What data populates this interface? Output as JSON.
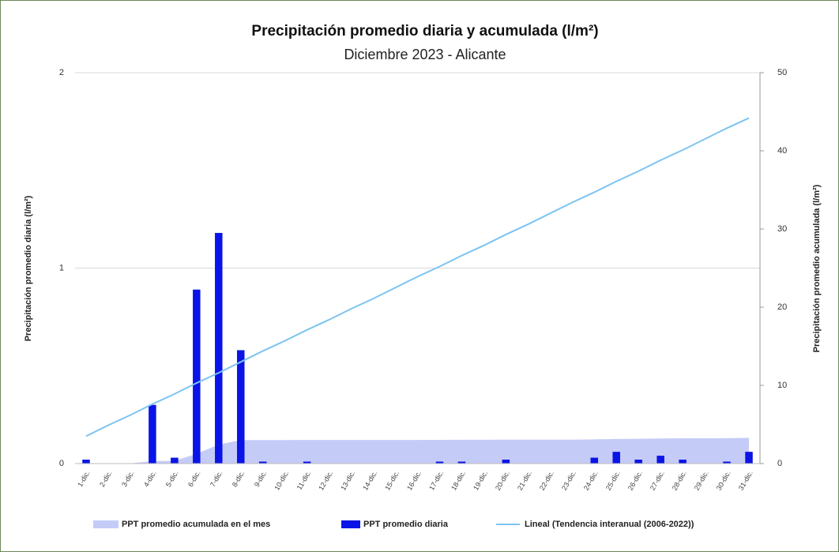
{
  "chart_data": {
    "type": "bar",
    "title": "Precipitación promedio diaria y acumulada (l/m²)",
    "subtitle": "Diciembre 2023 - Alicante",
    "y_label": "Precipitación promedio diaria (l/m²)",
    "y2_label": "Precipitación promedio acumulada (l/m²)",
    "categories": [
      "1-dic.",
      "2-dic.",
      "3-dic.",
      "4-dic.",
      "5-dic.",
      "6-dic.",
      "7-dic.",
      "8-dic.",
      "9-dic.",
      "10-dic.",
      "11-dic.",
      "12-dic.",
      "13-dic.",
      "14-dic.",
      "15-dic.",
      "16-dic.",
      "17-dic.",
      "18-dic.",
      "19-dic.",
      "20-dic.",
      "21-dic.",
      "22-dic.",
      "23-dic.",
      "24-dic.",
      "25-dic.",
      "26-dic.",
      "27-dic.",
      "28-dic.",
      "29-dic.",
      "30-dic.",
      "31-dic."
    ],
    "series": [
      {
        "name": "PPT promedio acumulada en el mes",
        "type": "area",
        "axis": "y2",
        "color": "#c5cbf7",
        "values": [
          0.02,
          0.02,
          0.02,
          0.32,
          0.35,
          1.24,
          2.42,
          3.0,
          3.01,
          3.01,
          3.02,
          3.02,
          3.02,
          3.02,
          3.02,
          3.02,
          3.03,
          3.04,
          3.04,
          3.06,
          3.06,
          3.06,
          3.06,
          3.09,
          3.15,
          3.17,
          3.21,
          3.23,
          3.23,
          3.24,
          3.3
        ]
      },
      {
        "name": "PPT promedio diaria",
        "type": "bar",
        "color": "#0a14e6",
        "values": [
          0.02,
          0,
          0,
          0.3,
          0.03,
          0.89,
          1.18,
          0.58,
          0.01,
          0,
          0.01,
          0,
          0,
          0,
          0,
          0,
          0.01,
          0.01,
          0,
          0.02,
          0,
          0,
          0,
          0.03,
          0.06,
          0.02,
          0.04,
          0.02,
          0,
          0.01,
          0.06
        ]
      },
      {
        "name": "Lineal (Tendencia interanual (2006-2022))",
        "type": "line",
        "axis": "y2",
        "color": "#7cc4f2",
        "values": [
          3.5,
          4.9,
          6.2,
          7.6,
          8.9,
          10.3,
          11.6,
          13.0,
          14.4,
          15.7,
          17.1,
          18.4,
          19.8,
          21.1,
          22.5,
          23.9,
          25.2,
          26.6,
          27.9,
          29.3,
          30.6,
          32.0,
          33.4,
          34.7,
          36.1,
          37.4,
          38.8,
          40.1,
          41.5,
          42.9,
          44.2
        ]
      }
    ],
    "ylim": [
      0,
      2
    ],
    "yticks": [
      0,
      1,
      2
    ],
    "y2lim": [
      0,
      50
    ],
    "y2ticks": [
      0,
      10,
      20,
      30,
      40,
      50
    ],
    "grid": true,
    "legend": "bottom"
  }
}
